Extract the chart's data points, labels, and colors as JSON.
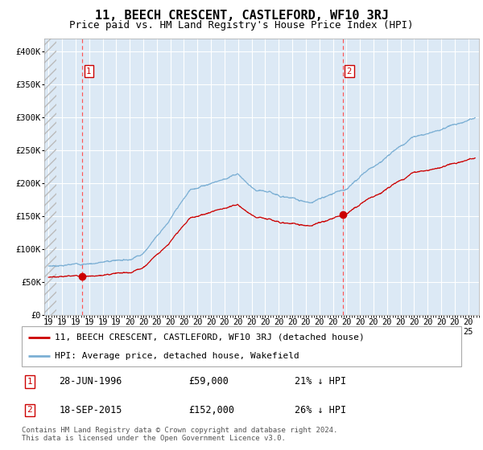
{
  "title": "11, BEECH CRESCENT, CASTLEFORD, WF10 3RJ",
  "subtitle": "Price paid vs. HM Land Registry's House Price Index (HPI)",
  "ylim": [
    0,
    420000
  ],
  "xlim_start": 1993.7,
  "xlim_end": 2025.8,
  "background_color": "#dce9f5",
  "grid_color": "#ffffff",
  "sale1_date": 1996.49,
  "sale1_price": 59000,
  "sale2_date": 2015.72,
  "sale2_price": 152000,
  "red_line_color": "#cc0000",
  "blue_line_color": "#7bafd4",
  "dashed_line_color": "#ff5555",
  "marker_color": "#cc0000",
  "legend_label_red": "11, BEECH CRESCENT, CASTLEFORD, WF10 3RJ (detached house)",
  "legend_label_blue": "HPI: Average price, detached house, Wakefield",
  "annotation1_date": "28-JUN-1996",
  "annotation1_price": "£59,000",
  "annotation1_hpi": "21% ↓ HPI",
  "annotation2_date": "18-SEP-2015",
  "annotation2_price": "£152,000",
  "annotation2_hpi": "26% ↓ HPI",
  "footer": "Contains HM Land Registry data © Crown copyright and database right 2024.\nThis data is licensed under the Open Government Licence v3.0.",
  "title_fontsize": 11,
  "subtitle_fontsize": 9,
  "tick_fontsize": 7.5,
  "legend_fontsize": 8,
  "annotation_fontsize": 8.5,
  "footer_fontsize": 6.5
}
